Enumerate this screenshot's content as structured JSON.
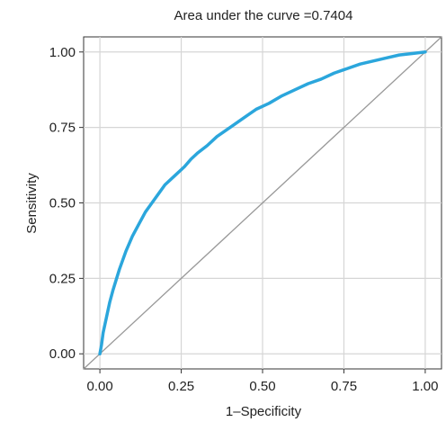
{
  "chart_data": {
    "type": "line",
    "title": "Area under the curve =0.7404",
    "xlabel": "1–Specificity",
    "ylabel": "Sensitivity",
    "xlim": [
      -0.05,
      1.05
    ],
    "ylim": [
      -0.05,
      1.05
    ],
    "x_ticks": [
      "0.00",
      "0.25",
      "0.50",
      "0.75",
      "1.00"
    ],
    "y_ticks": [
      "0.00",
      "0.25",
      "0.50",
      "0.75",
      "1.00"
    ],
    "x_tick_values": [
      0,
      0.25,
      0.5,
      0.75,
      1.0
    ],
    "y_tick_values": [
      0,
      0.25,
      0.5,
      0.75,
      1.0
    ],
    "grid": true,
    "legend": "none",
    "series": [
      {
        "color": "#2ba6dc",
        "x": [
          0.0,
          0.005,
          0.01,
          0.02,
          0.03,
          0.04,
          0.06,
          0.08,
          0.1,
          0.12,
          0.14,
          0.16,
          0.18,
          0.2,
          0.23,
          0.26,
          0.28,
          0.3,
          0.33,
          0.36,
          0.4,
          0.44,
          0.48,
          0.52,
          0.56,
          0.6,
          0.64,
          0.68,
          0.72,
          0.76,
          0.8,
          0.84,
          0.88,
          0.92,
          0.96,
          1.0
        ],
        "y": [
          0.0,
          0.03,
          0.07,
          0.12,
          0.17,
          0.21,
          0.28,
          0.34,
          0.39,
          0.43,
          0.47,
          0.5,
          0.53,
          0.56,
          0.59,
          0.62,
          0.645,
          0.665,
          0.69,
          0.72,
          0.75,
          0.78,
          0.81,
          0.83,
          0.855,
          0.875,
          0.895,
          0.91,
          0.93,
          0.945,
          0.96,
          0.97,
          0.98,
          0.99,
          0.995,
          1.0
        ]
      },
      {
        "color": "#999999",
        "x": [
          -0.05,
          1.05
        ],
        "y": [
          -0.05,
          1.05
        ]
      }
    ]
  }
}
